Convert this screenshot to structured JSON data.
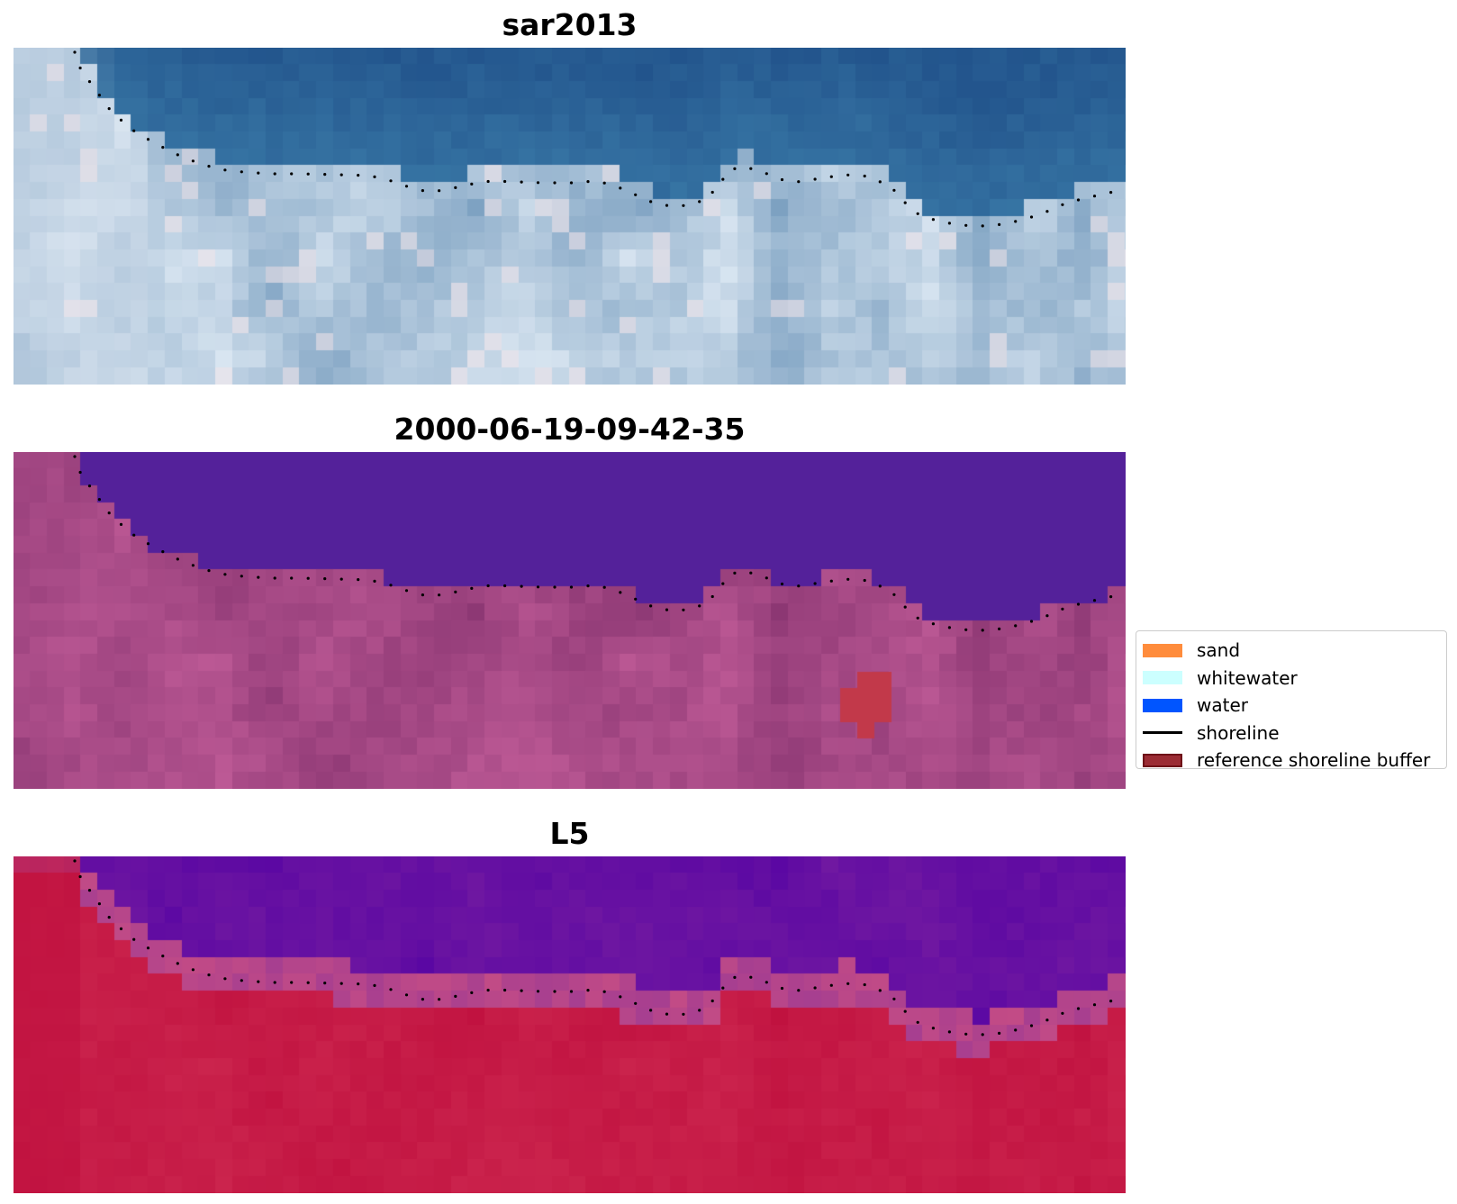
{
  "panels": [
    {
      "title": "sar2013",
      "style": "rgb"
    },
    {
      "title": "2000-06-19-09-42-35",
      "style": "classified"
    },
    {
      "title": "L5",
      "style": "index"
    }
  ],
  "legend": {
    "items": [
      {
        "label": "sand",
        "kind": "patch",
        "color": "#ff8c3c"
      },
      {
        "label": "whitewater",
        "kind": "patch",
        "color": "#ccffff"
      },
      {
        "label": "water",
        "kind": "patch",
        "color": "#0055ff"
      },
      {
        "label": "shoreline",
        "kind": "line",
        "color": "#000000"
      },
      {
        "label": "reference shoreline buffer",
        "kind": "patch",
        "color": "#9b2c34",
        "edge": "#6e1017"
      }
    ]
  },
  "colors": {
    "classified_water": "#54219a",
    "buffer": "#c2394a",
    "index_water": "#5a07a3",
    "index_land": "#c0113f"
  }
}
